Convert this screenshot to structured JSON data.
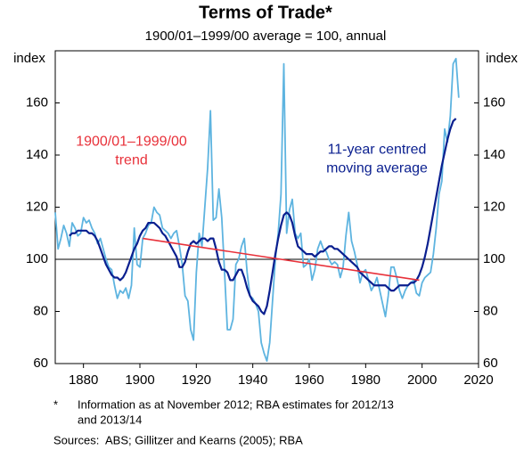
{
  "chart_data": {
    "type": "line",
    "title": "Terms of Trade*",
    "subtitle": "1900/01–1999/00 average = 100, annual",
    "ylabel": "index",
    "y2label": "index",
    "xlim": [
      1870,
      2020
    ],
    "xticks": [
      1880,
      1900,
      1920,
      1940,
      1960,
      1980,
      2000,
      2020
    ],
    "ylim": [
      60,
      180
    ],
    "yticks": [
      60,
      80,
      100,
      120,
      140,
      160
    ],
    "y2lim": [
      60,
      180
    ],
    "y2ticks": [
      60,
      80,
      100,
      120,
      140,
      160
    ],
    "hline": 100,
    "x": [
      1870,
      1871,
      1872,
      1873,
      1874,
      1875,
      1876,
      1877,
      1878,
      1879,
      1880,
      1881,
      1882,
      1883,
      1884,
      1885,
      1886,
      1887,
      1888,
      1889,
      1890,
      1891,
      1892,
      1893,
      1894,
      1895,
      1896,
      1897,
      1898,
      1899,
      1900,
      1901,
      1902,
      1903,
      1904,
      1905,
      1906,
      1907,
      1908,
      1909,
      1910,
      1911,
      1912,
      1913,
      1914,
      1915,
      1916,
      1917,
      1918,
      1919,
      1920,
      1921,
      1922,
      1923,
      1924,
      1925,
      1926,
      1927,
      1928,
      1929,
      1930,
      1931,
      1932,
      1933,
      1934,
      1935,
      1936,
      1937,
      1938,
      1939,
      1940,
      1941,
      1942,
      1943,
      1944,
      1945,
      1946,
      1947,
      1948,
      1949,
      1950,
      1951,
      1952,
      1953,
      1954,
      1955,
      1956,
      1957,
      1958,
      1959,
      1960,
      1961,
      1962,
      1963,
      1964,
      1965,
      1966,
      1967,
      1968,
      1969,
      1970,
      1971,
      1972,
      1973,
      1974,
      1975,
      1976,
      1977,
      1978,
      1979,
      1980,
      1981,
      1982,
      1983,
      1984,
      1985,
      1986,
      1987,
      1988,
      1989,
      1990,
      1991,
      1992,
      1993,
      1994,
      1995,
      1996,
      1997,
      1998,
      1999,
      2000,
      2001,
      2002,
      2003,
      2004,
      2005,
      2006,
      2007,
      2008,
      2009,
      2010,
      2011,
      2012,
      2013
    ],
    "series": [
      {
        "color": "#5eb4e0",
        "width": 1.8,
        "values": [
          118,
          104,
          108,
          113,
          110,
          105,
          114,
          112,
          109,
          110,
          116,
          114,
          115,
          112,
          110,
          106,
          108,
          104,
          100,
          97,
          96,
          90,
          85,
          88,
          87,
          89,
          85,
          90,
          112,
          98,
          97,
          108,
          110,
          113,
          114,
          120,
          118,
          117,
          112,
          111,
          110,
          108,
          110,
          111,
          105,
          98,
          86,
          84,
          73,
          69,
          95,
          110,
          105,
          120,
          135,
          157,
          115,
          116,
          127,
          116,
          95,
          73,
          73,
          77,
          98,
          100,
          105,
          108,
          95,
          86,
          85,
          83,
          80,
          68,
          64,
          61,
          68,
          84,
          100,
          110,
          125,
          175,
          110,
          119,
          123,
          110,
          108,
          110,
          97,
          98,
          100,
          92,
          96,
          104,
          107,
          104,
          103,
          100,
          98,
          99,
          98,
          93,
          97,
          109,
          118,
          107,
          103,
          98,
          91,
          95,
          96,
          92,
          88,
          90,
          93,
          88,
          83,
          78,
          86,
          97,
          97,
          93,
          88,
          85,
          88,
          90,
          91,
          92,
          87,
          86,
          91,
          93,
          94,
          95,
          102,
          112,
          125,
          130,
          150,
          145,
          155,
          175,
          177,
          162
        ]
      },
      {
        "color": "#0a1f8f",
        "width": 2.2,
        "values": [
          null,
          null,
          null,
          null,
          null,
          109,
          110,
          110,
          111,
          111,
          111,
          111,
          110,
          110,
          109,
          107,
          104,
          101,
          98,
          96,
          94,
          93,
          93,
          92,
          93,
          95,
          98,
          101,
          104,
          106,
          109,
          111,
          112,
          114,
          114,
          114,
          113,
          112,
          110,
          109,
          107,
          105,
          103,
          101,
          97,
          97,
          99,
          103,
          106,
          107,
          106,
          107,
          108,
          108,
          107,
          108,
          108,
          104,
          99,
          96,
          96,
          95,
          92,
          92,
          94,
          96,
          96,
          93,
          89,
          86,
          84,
          83,
          82,
          80,
          79,
          82,
          88,
          95,
          102,
          108,
          113,
          117,
          118,
          117,
          114,
          109,
          105,
          104,
          103,
          102,
          102,
          102,
          101,
          102,
          103,
          103,
          104,
          105,
          105,
          104,
          104,
          103,
          102,
          101,
          100,
          99,
          98,
          97,
          95,
          94,
          93,
          92,
          91,
          90,
          90,
          90,
          90,
          90,
          89,
          88,
          88,
          89,
          90,
          90,
          90,
          90,
          91,
          91,
          92,
          94,
          97,
          101,
          106,
          112,
          118,
          124,
          130,
          136,
          141,
          146,
          150,
          153,
          154,
          null
        ]
      },
      {
        "color": "#e8313a",
        "width": 1.6,
        "x": [
          1901,
          1999
        ],
        "values": [
          108,
          92
        ]
      }
    ],
    "annotations": [
      {
        "lines": [
          "1900/01–1999/00",
          "trend"
        ],
        "color": "#e8313a",
        "x": 1897,
        "y": 145
      },
      {
        "lines": [
          "11-year centred",
          "moving average"
        ],
        "color": "#0a1f8f",
        "x": 1984,
        "y": 142
      }
    ],
    "notes": [
      {
        "mark": "*",
        "lines": [
          "Information as at November 2012; RBA estimates for 2012/13",
          "and 2013/14"
        ]
      },
      {
        "mark": "Sources:",
        "lines": [
          "ABS; Gillitzer and Kearns (2005); RBA"
        ]
      }
    ]
  }
}
